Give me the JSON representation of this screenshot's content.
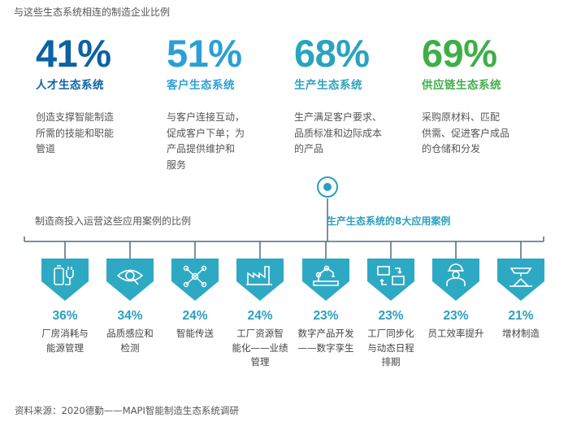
{
  "heading": "与这些生态系统相连的制造企业比例",
  "stats": [
    {
      "pct": "41%",
      "name": "人才生态系统",
      "color": "#0b62a4",
      "desc": [
        "创造支撑智能制造",
        "所需的技能和职能",
        "管道"
      ]
    },
    {
      "pct": "51%",
      "name": "客户生态系统",
      "color": "#2a9fd8",
      "desc": [
        "与客户连接互动，",
        "促成客户下单；为",
        "产品提供维护和",
        "服务"
      ]
    },
    {
      "pct": "68%",
      "name": "生产生态系统",
      "color": "#2aa3bf",
      "desc": [
        "生产满足客户要求、",
        "品质标准和边际成本",
        "的产品"
      ]
    },
    {
      "pct": "69%",
      "name": "供应链生态系统",
      "color": "#3fae49",
      "desc": [
        "采购原材料、匹配",
        "供需、促进客户成品",
        "的仓储和分发"
      ]
    }
  ],
  "sublabel": "制造商投入运营这些应用案例的比例",
  "callout": "生产生态系统的8大应用案例",
  "cases": [
    {
      "pct": "36%",
      "label": [
        "厂房消耗与",
        "能源管理"
      ],
      "icon": "battery-plug-icon"
    },
    {
      "pct": "34%",
      "label": [
        "品质感应和",
        "检测"
      ],
      "icon": "eye-magnifier-icon"
    },
    {
      "pct": "24%",
      "label": [
        "智能传送"
      ],
      "icon": "network-nodes-icon"
    },
    {
      "pct": "24%",
      "label": [
        "工厂资源智",
        "能化——业绩",
        "管理"
      ],
      "icon": "factory-icon"
    },
    {
      "pct": "23%",
      "label": [
        "数字产品开发",
        "——数字孪生"
      ],
      "icon": "robot-arm-icon"
    },
    {
      "pct": "23%",
      "label": [
        "工厂同步化",
        "与动态日程",
        "排期"
      ],
      "icon": "sync-screens-icon"
    },
    {
      "pct": "23%",
      "label": [
        "员工效率提升"
      ],
      "icon": "worker-icon"
    },
    {
      "pct": "21%",
      "label": [
        "增材制造"
      ],
      "icon": "3d-print-icon"
    }
  ],
  "source": "资料来源：2020德勤——MAPI智能制造生态系统调研",
  "colors": {
    "accent": "#2a9fbf",
    "hex_fill": "#2ea9c4",
    "line": "#4f6b7d"
  }
}
